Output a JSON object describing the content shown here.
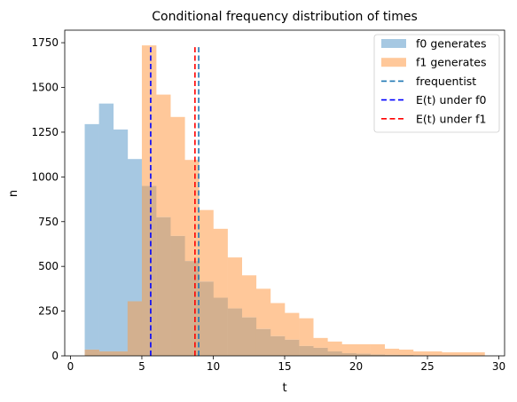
{
  "chart_data": {
    "type": "bar",
    "title": "Conditional frequency distribution of times",
    "xlabel": "t",
    "ylabel": "n",
    "xlim": [
      -0.4,
      30.4
    ],
    "ylim": [
      0,
      1820
    ],
    "xticks": [
      0,
      5,
      10,
      15,
      20,
      25,
      30
    ],
    "yticks": [
      0,
      250,
      500,
      750,
      1000,
      1250,
      1500,
      1750
    ],
    "legend_position": "top-right",
    "bin_edges": [
      1,
      2,
      3,
      4,
      5,
      6,
      7,
      8,
      9,
      10,
      11,
      12,
      13,
      14,
      15,
      16,
      17,
      18,
      19,
      20,
      21,
      22,
      23,
      24,
      25,
      26,
      27,
      28,
      29
    ],
    "series": [
      {
        "name": "f0 generates",
        "color": "#a6c8e2",
        "values": [
          1295,
          1410,
          1265,
          1100,
          950,
          775,
          670,
          530,
          415,
          325,
          265,
          215,
          150,
          110,
          90,
          55,
          45,
          25,
          15,
          12,
          8,
          6,
          5,
          3,
          2,
          1,
          1,
          1
        ]
      },
      {
        "name": "f1 generates",
        "color": "#ffc89a",
        "values": [
          35,
          25,
          25,
          305,
          1735,
          1460,
          1335,
          1095,
          815,
          710,
          550,
          450,
          375,
          295,
          240,
          210,
          100,
          80,
          65,
          65,
          65,
          40,
          35,
          25,
          25,
          20,
          20,
          20
        ]
      }
    ],
    "overlap_color": "#d3b08f",
    "vlines": [
      {
        "name": "frequentist",
        "x": 8.98,
        "color": "#1f77b4"
      },
      {
        "name": "E(t) under f0",
        "x": 5.62,
        "color": "#0000ff"
      },
      {
        "name": "E(t) under f1",
        "x": 8.72,
        "color": "#ff0000"
      }
    ],
    "vline_top": 1725
  }
}
